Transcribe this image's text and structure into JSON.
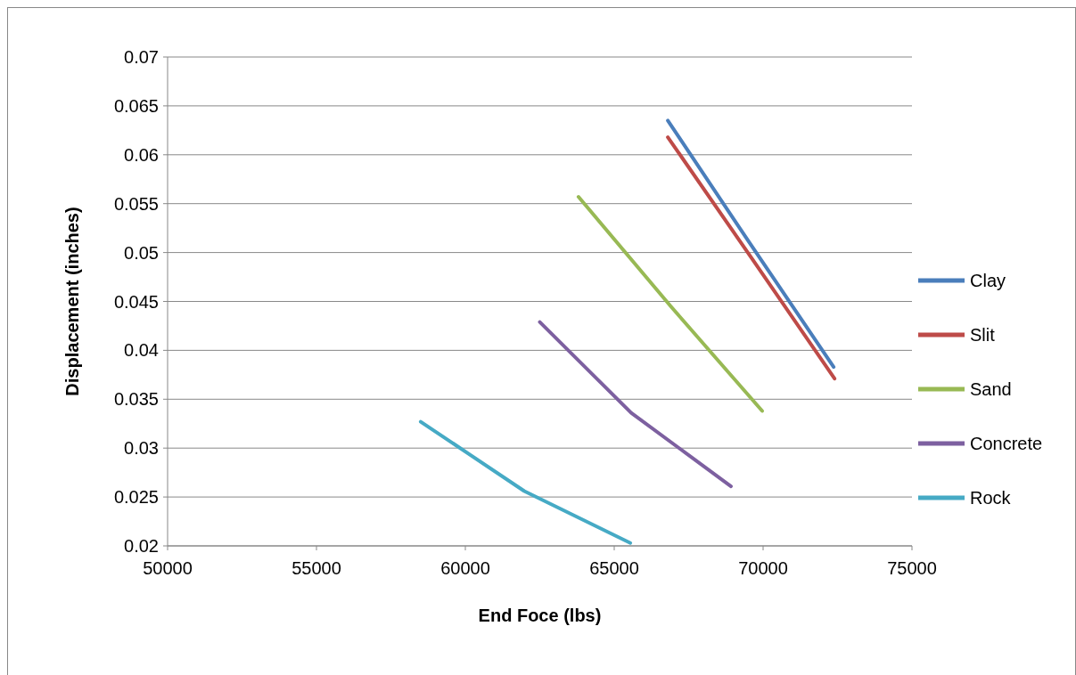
{
  "chart_data": {
    "type": "line",
    "xlabel": "End Foce (lbs)",
    "ylabel": "Displacement (inches)",
    "xlim": [
      50000,
      75000
    ],
    "xticks": [
      50000,
      55000,
      60000,
      65000,
      70000,
      75000
    ],
    "ylim": [
      0.02,
      0.07
    ],
    "yticks": [
      0.02,
      0.025,
      0.03,
      0.035,
      0.04,
      0.045,
      0.05,
      0.055,
      0.06,
      0.065,
      0.07
    ],
    "grid": "y",
    "legend": "right",
    "marker": "none",
    "line_style": "solid",
    "series": [
      {
        "name": "Clay",
        "color": "#4a7ebb",
        "x": [
          66800,
          69500,
          72370
        ],
        "values": [
          0.0635,
          0.0512,
          0.0383
        ]
      },
      {
        "name": "Slit",
        "color": "#be4b48",
        "x": [
          66800,
          69600,
          72400
        ],
        "values": [
          0.0618,
          0.0495,
          0.0371
        ]
      },
      {
        "name": "Sand",
        "color": "#98b954",
        "x": [
          63800,
          66900,
          69970
        ],
        "values": [
          0.0557,
          0.0445,
          0.0338
        ]
      },
      {
        "name": "Concrete",
        "color": "#7d60a0",
        "x": [
          62500,
          65570,
          68920
        ],
        "values": [
          0.0429,
          0.0336,
          0.0261
        ]
      },
      {
        "name": "Rock",
        "color": "#46aac5",
        "x": [
          58500,
          61980,
          65540
        ],
        "values": [
          0.0327,
          0.0256,
          0.0203
        ]
      }
    ]
  }
}
